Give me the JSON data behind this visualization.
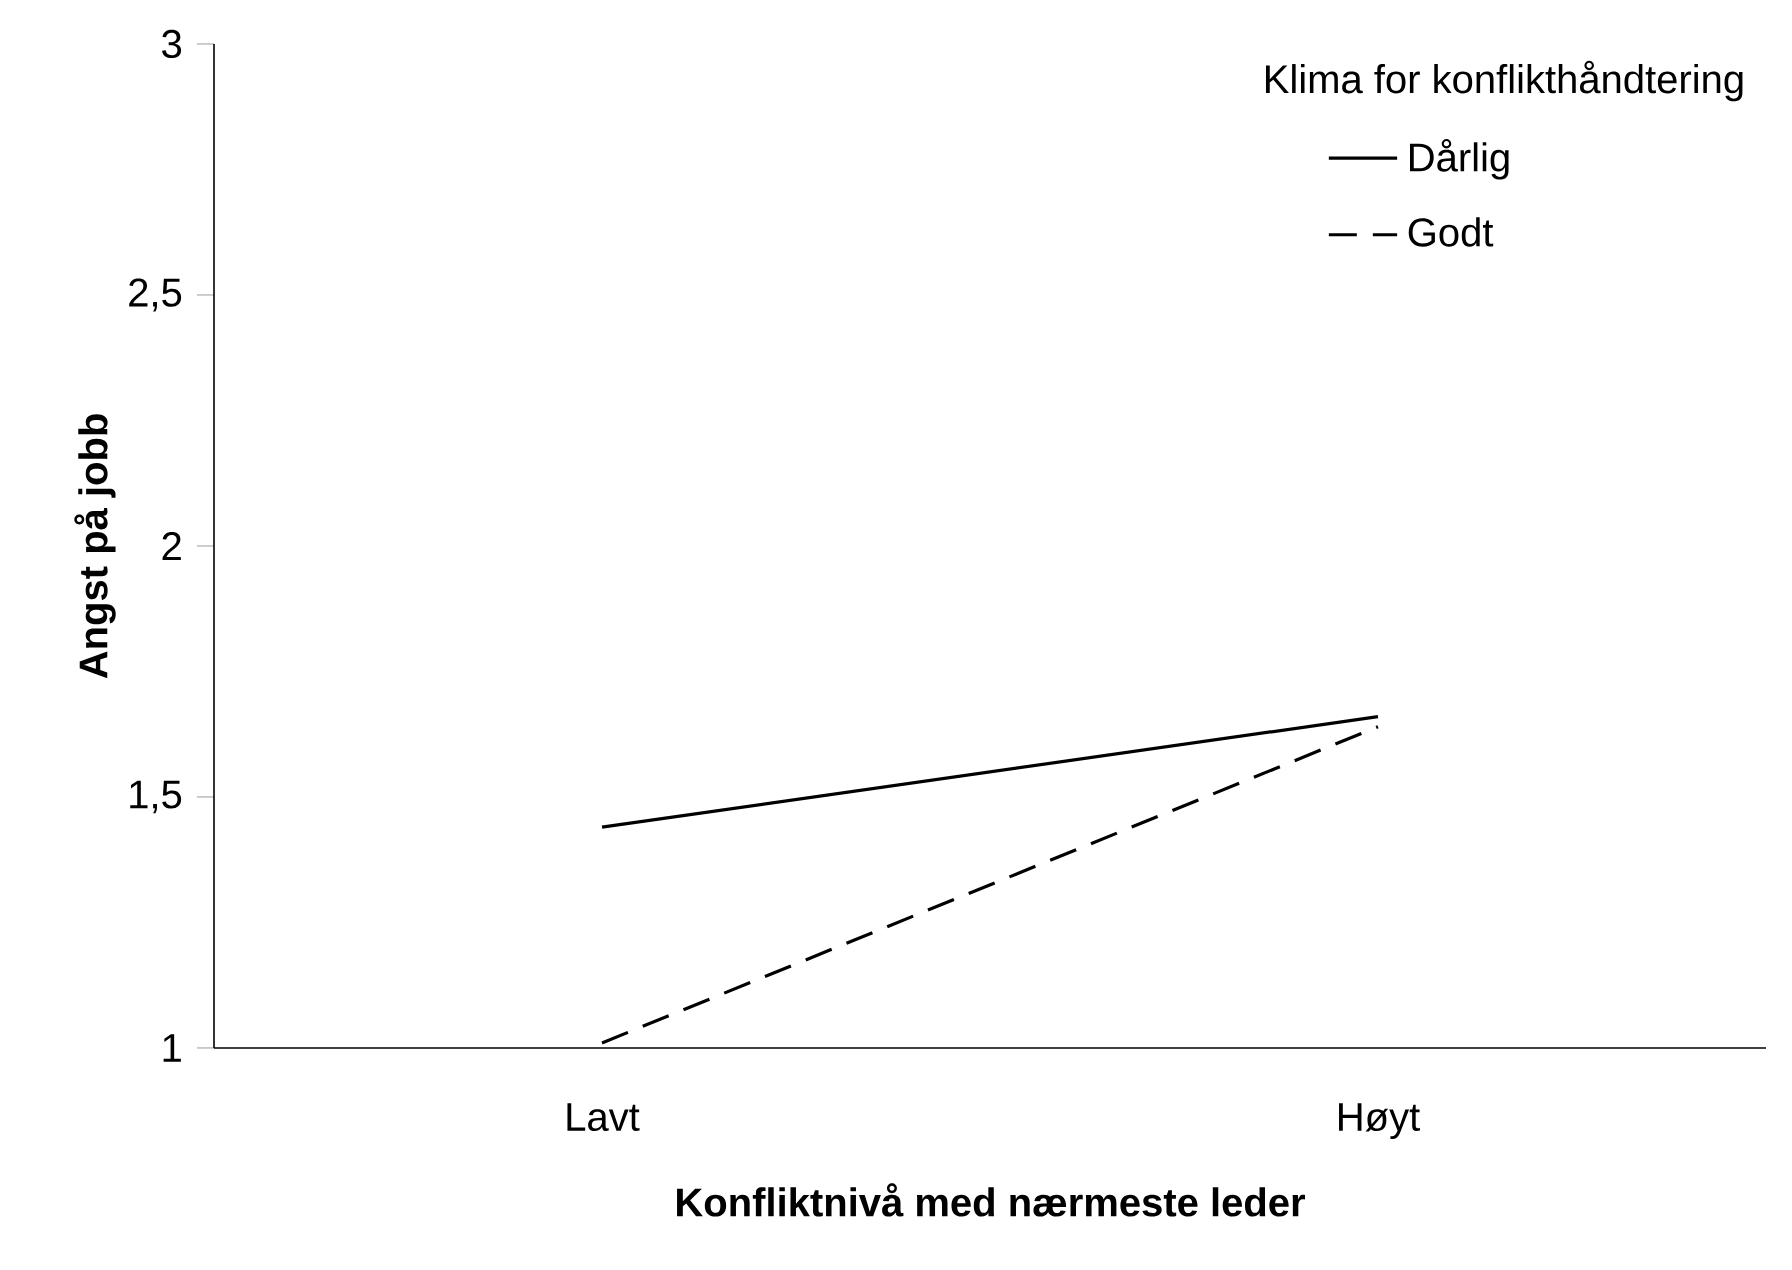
{
  "chart_data": {
    "type": "line",
    "xlabel": "Konfliktnivå med nærmeste leder",
    "ylabel": "Angst på jobb",
    "legend_title": "Klima for konflikthåndtering",
    "categories": [
      "Lavt",
      "Høyt"
    ],
    "series": [
      {
        "name": "Dårlig",
        "color": "#000000",
        "line_style": "solid",
        "values": [
          1.44,
          1.66
        ]
      },
      {
        "name": "Godt",
        "color": "#000000",
        "line_style": "dashed",
        "values": [
          1.01,
          1.64
        ]
      }
    ],
    "ylim": [
      1,
      3
    ],
    "yticks": [
      1,
      {
        "value": 1.5,
        "label": "1,5"
      },
      2,
      {
        "value": 2.5,
        "label": "2,5"
      },
      3
    ],
    "grid": false,
    "legend": "top right",
    "marker": "none"
  }
}
